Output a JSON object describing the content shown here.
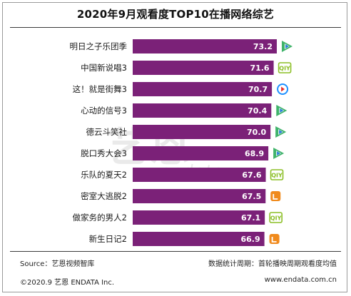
{
  "colors": {
    "bar": "#7b2178",
    "tencent": "#3fb36a",
    "iqiyi": "#8cbf26",
    "youku": "#1e90ff",
    "mango": "#f08a1c"
  },
  "watermark": {
    "main": "艺恩",
    "sub": "endata"
  },
  "chart_data": {
    "type": "bar",
    "orientation": "horizontal",
    "title": "2020年9月观看度TOP10在播网络综艺",
    "categories": [
      "明日之子乐团季",
      "中国新说唱3",
      "这！就是街舞3",
      "心动的信号3",
      "德云斗笑社",
      "脱口秀大会3",
      "乐队的夏天2",
      "密室大逃脱2",
      "做家务的男人2",
      "新生日记2"
    ],
    "values": [
      73.2,
      71.6,
      70.7,
      70.4,
      70.0,
      68.9,
      67.6,
      67.5,
      67.1,
      66.9
    ],
    "value_labels": [
      "73.2",
      "71.6",
      "70.7",
      "70.4",
      "70.0",
      "68.9",
      "67.6",
      "67.5",
      "67.1",
      "66.9"
    ],
    "platforms": [
      "tencent",
      "iqiyi",
      "youku",
      "tencent",
      "tencent",
      "tencent",
      "iqiyi",
      "mango",
      "iqiyi",
      "mango"
    ],
    "xlim": [
      0,
      73.2
    ],
    "grid": false,
    "legend": "none"
  },
  "footer": {
    "source": "Source：艺恩视频智库",
    "period": "数据统计周期：首轮播映周期观看度均值",
    "copyright": "©2020.9 艺恩 ENDATA Inc.",
    "website": "www.endata.com.cn"
  }
}
